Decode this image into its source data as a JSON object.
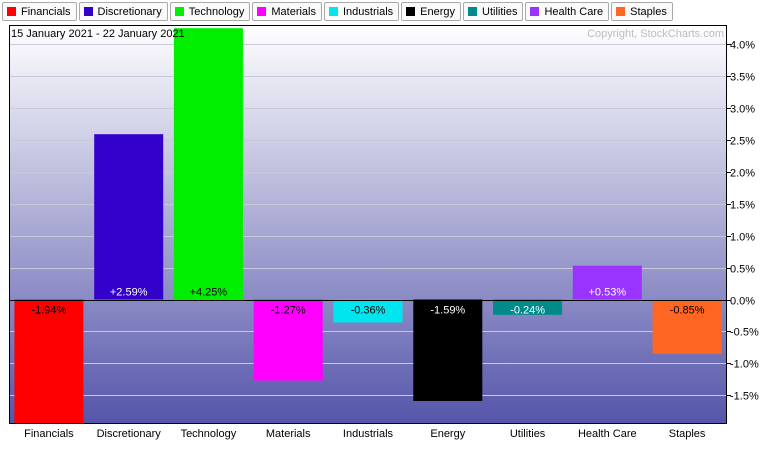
{
  "legend": [
    {
      "label": "Financials",
      "color": "#ff0000"
    },
    {
      "label": "Discretionary",
      "color": "#3300cc"
    },
    {
      "label": "Technology",
      "color": "#00ee00"
    },
    {
      "label": "Materials",
      "color": "#ff00ff"
    },
    {
      "label": "Industrials",
      "color": "#00e5ee"
    },
    {
      "label": "Energy",
      "color": "#000000"
    },
    {
      "label": "Utilities",
      "color": "#008b8b"
    },
    {
      "label": "Health Care",
      "color": "#9933ff"
    },
    {
      "label": "Staples",
      "color": "#ff6622"
    }
  ],
  "chart_data": {
    "type": "bar",
    "subtitle": "15 January 2021 - 22 January 2021",
    "copyright": "Copyright, StockCharts.com",
    "categories": [
      "Financials",
      "Discretionary",
      "Technology",
      "Materials",
      "Industrials",
      "Energy",
      "Utilities",
      "Health Care",
      "Staples"
    ],
    "values": [
      -1.94,
      2.59,
      4.25,
      -1.27,
      -0.36,
      -1.59,
      -0.24,
      0.53,
      -0.85
    ],
    "data_labels": [
      "-1.94%",
      "+2.59%",
      "+4.25%",
      "-1.27%",
      "-0.36%",
      "-1.59%",
      "-0.24%",
      "+0.53%",
      "-0.85%"
    ],
    "colors": [
      "#ff0000",
      "#3300cc",
      "#00ee00",
      "#ff00ff",
      "#00e5ee",
      "#000000",
      "#008b8b",
      "#9933ff",
      "#ff6622"
    ],
    "label_colors": [
      "#000000",
      "#ffffff",
      "#000000",
      "#000000",
      "#000000",
      "#ffffff",
      "#ffffff",
      "#ffffff",
      "#000000"
    ],
    "yticks": [
      4.0,
      3.5,
      3.0,
      2.5,
      2.0,
      1.5,
      1.0,
      0.5,
      0.0,
      -0.5,
      -1.0,
      -1.5
    ],
    "ytick_labels": [
      "4.0%",
      "3.5%",
      "3.0%",
      "2.5%",
      "2.0%",
      "1.5%",
      "1.0%",
      "0.5%",
      "0.0%",
      "-0.5%",
      "-1.0%",
      "-1.5%"
    ],
    "ylim": [
      -1.95,
      4.3
    ],
    "axis_position": "right",
    "grid": true,
    "background_gradient": [
      "#ffffff",
      "#5555aa"
    ]
  }
}
